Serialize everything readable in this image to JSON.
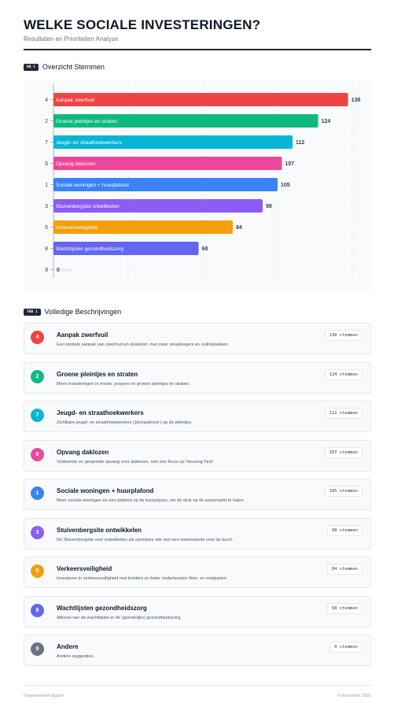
{
  "header": {
    "title": "WELKE SOCIALE INVESTERINGEN?",
    "subtitle": "Resultaten en Prioriteiten Analyse"
  },
  "section1": {
    "tag": "HQ 1",
    "title": "Overzicht Stemmen"
  },
  "section2": {
    "tag": "TAB 1",
    "title": "Volledige Beschrijvingen"
  },
  "chart_data": {
    "type": "bar",
    "orientation": "horizontal",
    "categories": [
      "Aanpak zwerfvuil",
      "Groene pleintjes en straten",
      "Jeugd- en straathoekwerkers",
      "Opvang daklozen",
      "Sociale woningen + huurplafond",
      "Stuivenbergsite ontwikkelen",
      "Verkeersveiligheid",
      "Wachtlijsten gezondheidszorg",
      "Andere"
    ],
    "ranks": [
      "4",
      "2",
      "7",
      "6",
      "1",
      "3",
      "5",
      "8",
      "9"
    ],
    "values": [
      138,
      124,
      112,
      107,
      105,
      98,
      84,
      68,
      0
    ],
    "colors": [
      "#ef4444",
      "#10b981",
      "#06b6d4",
      "#ec4899",
      "#3b82f6",
      "#8b5cf6",
      "#f59e0b",
      "#6366f1",
      "#6b7280"
    ],
    "xlim": [
      0,
      140
    ],
    "grid": true
  },
  "items": [
    {
      "num": "4",
      "color": "#ef4444",
      "title": "Aanpak zwerfvuil",
      "desc": "Een kordate aanpak van zwerfvuil en sluikstort, met meer straatvegers en vuilnisbakken.",
      "votes": "138 stemmen"
    },
    {
      "num": "2",
      "color": "#10b981",
      "title": "Groene pleintjes en straten",
      "desc": "Meer investeringen in mooie, propere en groene pleintjes en straten.",
      "votes": "124 stemmen"
    },
    {
      "num": "7",
      "color": "#06b6d4",
      "title": "Jeugd- en straathoekwerkers",
      "desc": "Zichtbare jeugd- en straathoekwerkers ('pleinpatrons') op de pleintjes.",
      "votes": "112 stemmen"
    },
    {
      "num": "6",
      "color": "#ec4899",
      "title": "Opvang daklozen",
      "desc": "Voldoende en gespreide opvang voor daklozen, met een focus op 'Housing First'.",
      "votes": "107 stemmen"
    },
    {
      "num": "1",
      "color": "#3b82f6",
      "title": "Sociale woningen + huurplafond",
      "desc": "Meer sociale woningen en een plafond op de huurprijzen, om de druk op de woonmarkt te halen.",
      "votes": "105 stemmen"
    },
    {
      "num": "3",
      "color": "#8b5cf6",
      "title": "Stuivenbergsite ontwikkelen",
      "desc": "De Stuivenbergsite snel ontwikkelen als openbare site met een meerwaarde voor de buurt.",
      "votes": "98 stemmen"
    },
    {
      "num": "5",
      "color": "#f59e0b",
      "title": "Verkeersveiligheid",
      "desc": "Investeren in verkeersveiligheid met bredere en beter onderhouden fiets- en voetpaden.",
      "votes": "84 stemmen"
    },
    {
      "num": "8",
      "color": "#6366f1",
      "title": "Wachtlijsten gezondheidszorg",
      "desc": "Afbouw van de wachtlijsten in de (geestelijke) gezondheidszorg.",
      "votes": "68 stemmen"
    },
    {
      "num": "9",
      "color": "#6b7280",
      "title": "Andere",
      "desc": "Andere suggesties.",
      "votes": "0 stemmen"
    }
  ],
  "footer": {
    "left": "Gegenereerd rapport",
    "right": "9 december 2025"
  }
}
